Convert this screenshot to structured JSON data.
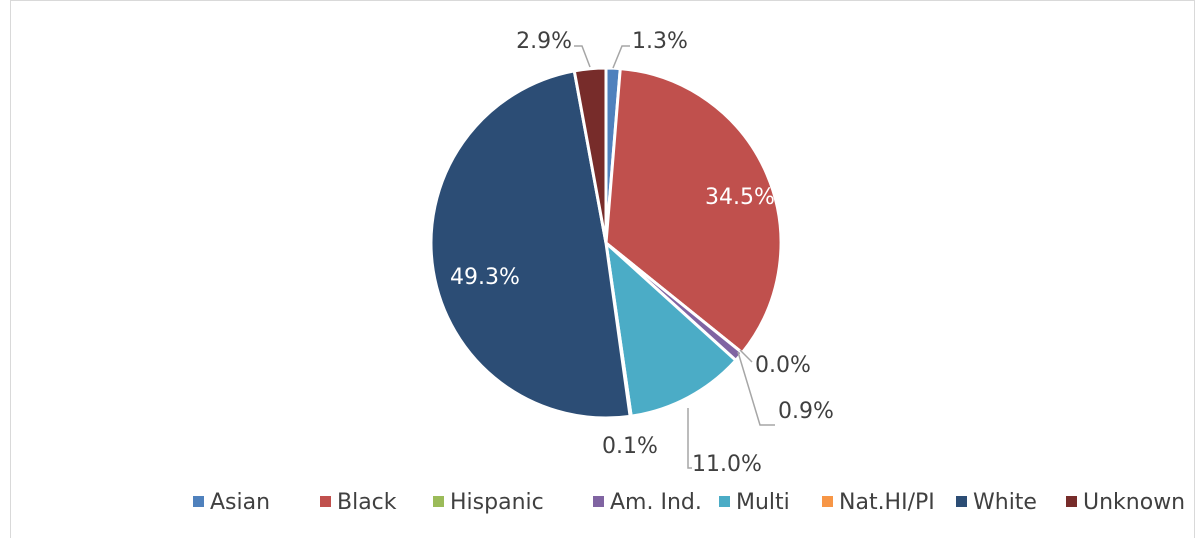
{
  "chart_data": {
    "type": "pie",
    "categories": [
      "Asian",
      "Black",
      "Hispanic",
      "Am. Ind.",
      "Multi",
      "Nat.HI/PI",
      "White",
      "Unknown"
    ],
    "values": [
      1.3,
      34.5,
      0.0,
      0.9,
      11.0,
      0.1,
      49.3,
      2.9
    ],
    "value_labels": [
      "1.3%",
      "34.5%",
      "0.0%",
      "0.9%",
      "11.0%",
      "0.1%",
      "49.3%",
      "2.9%"
    ],
    "colors": [
      "#4f81bd",
      "#c0504d",
      "#9bbb59",
      "#8064a2",
      "#4bacc6",
      "#f79646",
      "#2c4d75",
      "#772c2a"
    ],
    "legend": "bottom"
  }
}
